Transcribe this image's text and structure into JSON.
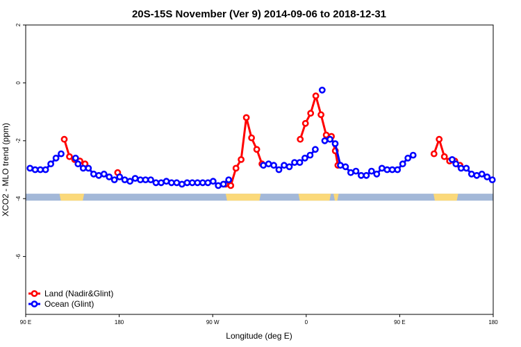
{
  "chart_data": {
    "type": "line",
    "title": "20S-15S November (Ver 9)   2014-09-06 to 2018-12-31",
    "xlabel": "Longitude (deg E)",
    "ylabel": "XCO2 - MLO trend (ppm)",
    "xlim": [
      90,
      450
    ],
    "ylim": [
      -8,
      2
    ],
    "x_ticks": [
      {
        "value": 90,
        "label": "90 E"
      },
      {
        "value": 162,
        "label": "180"
      },
      {
        "value": 234,
        "label": "90 W"
      },
      {
        "value": 306,
        "label": "0"
      },
      {
        "value": 378,
        "label": "90 E"
      },
      {
        "value": 450,
        "label": "180"
      }
    ],
    "y_ticks": [
      {
        "value": 2,
        "label": "2"
      },
      {
        "value": 0,
        "label": "0"
      },
      {
        "value": -2,
        "label": "-2"
      },
      {
        "value": -4,
        "label": "-4"
      },
      {
        "value": -6,
        "label": "-6"
      }
    ],
    "land_band": {
      "y": -3.95,
      "ranges": [
        [
          116,
          135
        ],
        [
          244,
          271
        ],
        [
          300,
          325
        ],
        [
          327,
          331
        ],
        [
          404,
          423
        ]
      ]
    },
    "series": [
      {
        "name": "Land (Nadir&Glint)",
        "color": "#ff0000",
        "points": [
          {
            "x": 119.7,
            "y": -1.95
          },
          {
            "x": 123.7,
            "y": -2.55
          },
          {
            "x": 127.7,
            "y": -2.65
          },
          {
            "x": 131.7,
            "y": -2.7
          },
          {
            "x": 135.7,
            "y": -2.8
          },
          null,
          {
            "x": 160.8,
            "y": -3.1
          },
          null,
          {
            "x": 243.9,
            "y": -3.5
          },
          {
            "x": 247.9,
            "y": -3.55
          },
          {
            "x": 251.9,
            "y": -2.95
          },
          {
            "x": 255.9,
            "y": -2.65
          },
          {
            "x": 259.9,
            "y": -1.2
          },
          {
            "x": 263.9,
            "y": -1.9
          },
          {
            "x": 267.9,
            "y": -2.3
          },
          {
            "x": 271.9,
            "y": -2.8
          },
          null,
          {
            "x": 301.4,
            "y": -1.95
          },
          {
            "x": 305.4,
            "y": -1.4
          },
          {
            "x": 309.4,
            "y": -1.05
          },
          {
            "x": 313.4,
            "y": -0.45
          },
          {
            "x": 317.4,
            "y": -1.1
          },
          {
            "x": 321.4,
            "y": -1.8
          },
          {
            "x": 325.4,
            "y": -1.85
          },
          {
            "x": 328.4,
            "y": -2.35
          },
          {
            "x": 330.4,
            "y": -2.85
          },
          null,
          {
            "x": 404.4,
            "y": -2.45
          },
          {
            "x": 408.4,
            "y": -1.95
          },
          {
            "x": 412.4,
            "y": -2.55
          },
          {
            "x": 416.4,
            "y": -2.7
          },
          {
            "x": 420.4,
            "y": -2.7
          },
          {
            "x": 424.4,
            "y": -2.85
          }
        ]
      },
      {
        "name": "Ocean (Glint)",
        "color": "#0000ff",
        "points": [
          {
            "x": 93.3,
            "y": -2.95
          },
          {
            "x": 97.3,
            "y": -3.0
          },
          {
            "x": 101.3,
            "y": -3.0
          },
          {
            "x": 105.3,
            "y": -3.0
          },
          {
            "x": 109.3,
            "y": -2.8
          },
          {
            "x": 113.3,
            "y": -2.6
          },
          {
            "x": 117.3,
            "y": -2.45
          },
          null,
          {
            "x": 128.4,
            "y": -2.6
          },
          {
            "x": 130.3,
            "y": -2.8
          },
          {
            "x": 134.3,
            "y": -2.95
          },
          {
            "x": 138.3,
            "y": -2.95
          },
          {
            "x": 142.3,
            "y": -3.15
          },
          {
            "x": 146.3,
            "y": -3.2
          },
          {
            "x": 150.3,
            "y": -3.15
          },
          {
            "x": 154.3,
            "y": -3.25
          },
          {
            "x": 158.3,
            "y": -3.35
          },
          {
            "x": 162.3,
            "y": -3.25
          },
          {
            "x": 166.3,
            "y": -3.35
          },
          {
            "x": 170.3,
            "y": -3.4
          },
          {
            "x": 174.3,
            "y": -3.3
          },
          {
            "x": 178.3,
            "y": -3.35
          },
          {
            "x": 182.3,
            "y": -3.35
          },
          {
            "x": 186.3,
            "y": -3.35
          },
          {
            "x": 190.3,
            "y": -3.45
          },
          {
            "x": 194.3,
            "y": -3.45
          },
          {
            "x": 198.3,
            "y": -3.4
          },
          {
            "x": 202.3,
            "y": -3.45
          },
          {
            "x": 206.3,
            "y": -3.45
          },
          {
            "x": 210.3,
            "y": -3.5
          },
          {
            "x": 214.3,
            "y": -3.45
          },
          {
            "x": 218.3,
            "y": -3.45
          },
          {
            "x": 222.3,
            "y": -3.45
          },
          {
            "x": 226.3,
            "y": -3.45
          },
          {
            "x": 230.3,
            "y": -3.45
          },
          {
            "x": 234.3,
            "y": -3.4
          },
          {
            "x": 238.3,
            "y": -3.55
          },
          {
            "x": 242.3,
            "y": -3.5
          },
          {
            "x": 246.3,
            "y": -3.35
          },
          null,
          {
            "x": 273.0,
            "y": -2.85
          },
          {
            "x": 277.0,
            "y": -2.8
          },
          {
            "x": 281.0,
            "y": -2.85
          },
          {
            "x": 285.0,
            "y": -3.0
          },
          {
            "x": 289.0,
            "y": -2.85
          },
          {
            "x": 293.0,
            "y": -2.9
          },
          {
            "x": 297.0,
            "y": -2.75
          },
          {
            "x": 301.0,
            "y": -2.75
          },
          {
            "x": 305.0,
            "y": -2.6
          },
          {
            "x": 309.0,
            "y": -2.5
          },
          {
            "x": 313.0,
            "y": -2.3
          },
          null,
          {
            "x": 318.3,
            "y": -0.25
          },
          null,
          {
            "x": 320.3,
            "y": -2.0
          },
          {
            "x": 324.3,
            "y": -1.95
          },
          {
            "x": 328.3,
            "y": -2.1
          },
          {
            "x": 332.3,
            "y": -2.85
          },
          {
            "x": 336.3,
            "y": -2.9
          },
          {
            "x": 340.3,
            "y": -3.1
          },
          {
            "x": 344.3,
            "y": -3.05
          },
          {
            "x": 348.3,
            "y": -3.2
          },
          {
            "x": 352.3,
            "y": -3.2
          },
          {
            "x": 356.3,
            "y": -3.05
          },
          {
            "x": 360.3,
            "y": -3.15
          },
          {
            "x": 364.3,
            "y": -2.95
          },
          {
            "x": 368.3,
            "y": -3.0
          },
          {
            "x": 372.3,
            "y": -3.0
          },
          {
            "x": 376.3,
            "y": -3.0
          },
          {
            "x": 380.3,
            "y": -2.8
          },
          {
            "x": 384.3,
            "y": -2.6
          },
          {
            "x": 388.3,
            "y": -2.5
          },
          null,
          {
            "x": 418.4,
            "y": -2.65
          },
          {
            "x": 421.3,
            "y": -2.8
          },
          {
            "x": 425.3,
            "y": -2.95
          },
          {
            "x": 429.3,
            "y": -2.95
          },
          {
            "x": 433.3,
            "y": -3.15
          },
          {
            "x": 437.3,
            "y": -3.2
          },
          {
            "x": 441.3,
            "y": -3.15
          },
          {
            "x": 445.3,
            "y": -3.25
          },
          {
            "x": 449.3,
            "y": -3.35
          }
        ]
      }
    ],
    "legend": {
      "position": "bottom-left",
      "entries": [
        "Land (Nadir&Glint)",
        "Ocean (Glint)"
      ]
    }
  }
}
